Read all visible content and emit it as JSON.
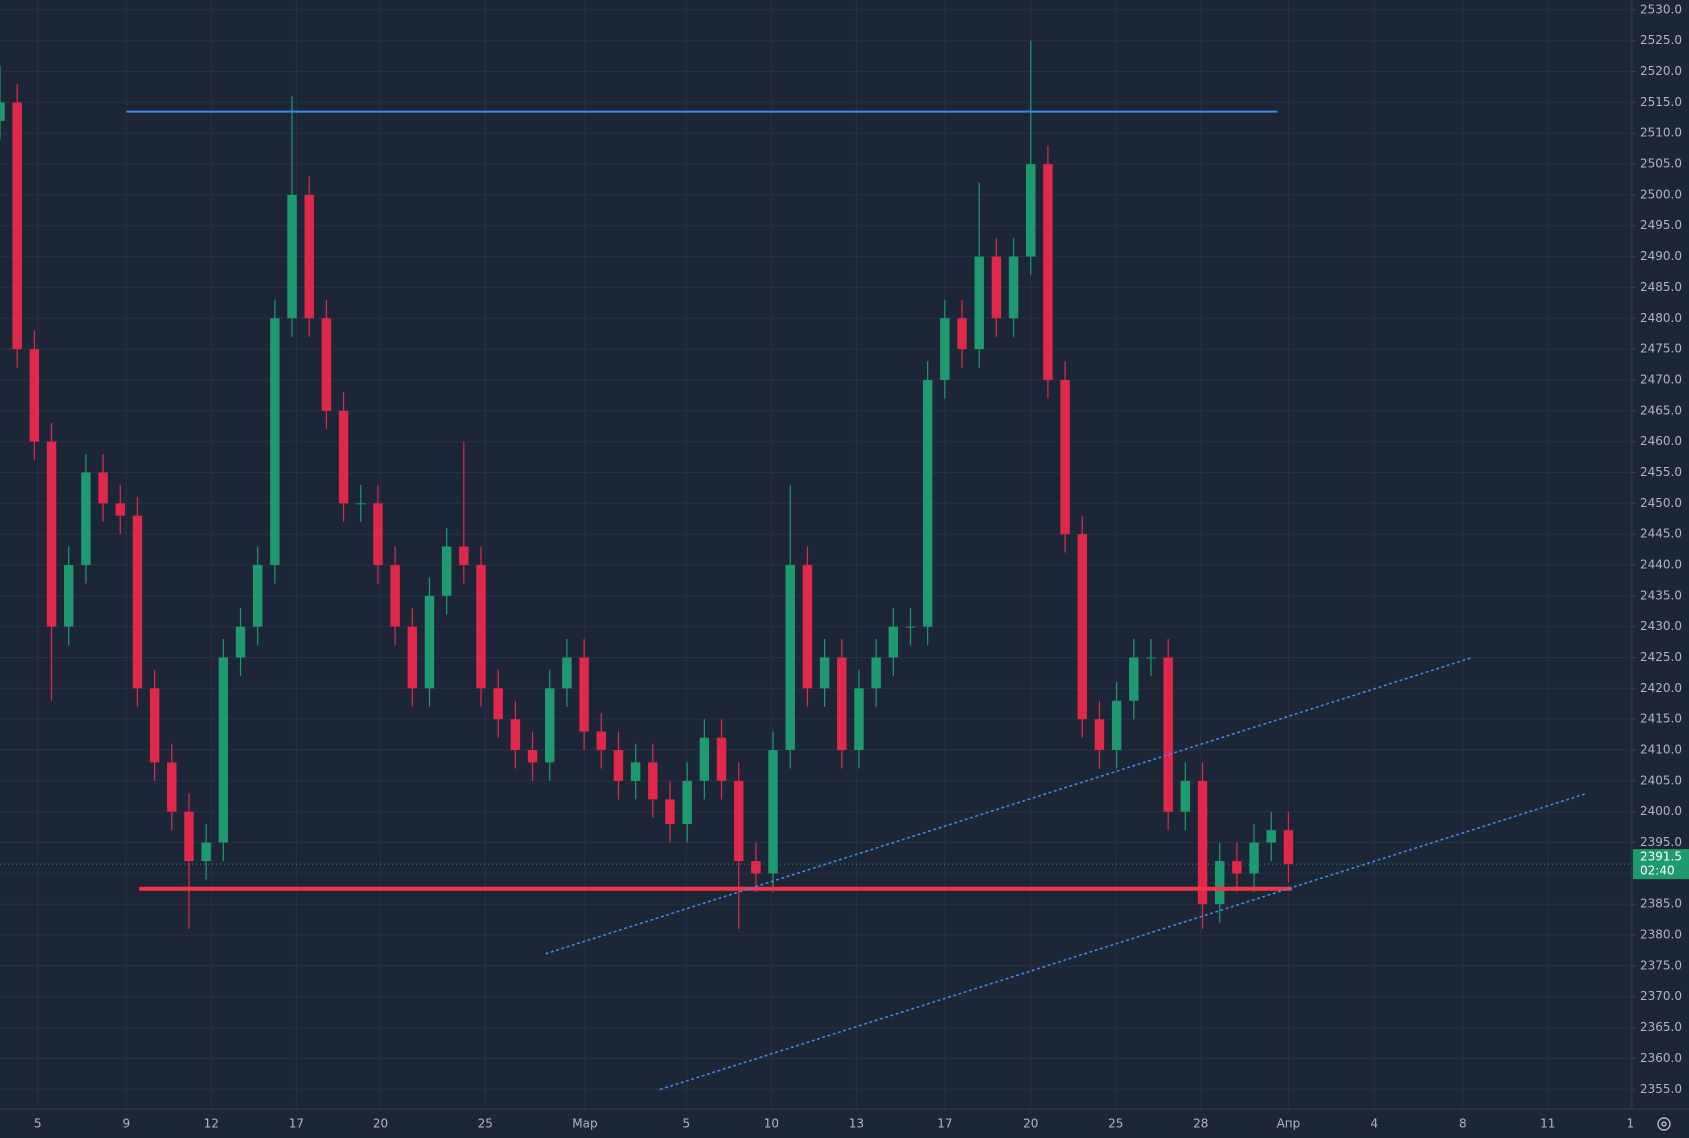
{
  "chart_data": {
    "type": "candlestick",
    "up_color": "#1f9a70",
    "down_color": "#e0294a",
    "grid": true,
    "x": [
      0,
      2,
      4,
      6,
      8,
      10,
      12,
      14,
      16,
      18,
      20,
      22,
      24,
      26,
      28,
      30,
      32,
      34,
      36,
      38,
      40,
      42,
      44,
      46,
      48,
      50,
      52,
      54,
      56,
      58,
      60,
      62,
      64,
      66,
      68,
      70,
      72,
      74,
      76,
      78,
      80,
      82,
      84,
      86,
      88,
      90,
      92,
      94,
      96,
      98,
      100,
      102,
      104,
      106,
      108,
      110,
      112,
      114,
      116,
      118,
      120,
      122,
      124,
      126,
      128,
      130,
      132,
      134,
      136,
      138,
      140,
      142,
      144,
      146,
      148,
      150
    ],
    "open": [
      2512,
      2515,
      2475,
      2460,
      2430,
      2440,
      2455,
      2450,
      2448,
      2420,
      2408,
      2400,
      2392,
      2395,
      2425,
      2430,
      2440,
      2480,
      2500,
      2480,
      2465,
      2450,
      2450,
      2440,
      2430,
      2420,
      2435,
      2443,
      2440,
      2420,
      2415,
      2410,
      2408,
      2420,
      2425,
      2413,
      2410,
      2405,
      2408,
      2402,
      2398,
      2405,
      2412,
      2405,
      2392,
      2390,
      2410,
      2440,
      2420,
      2425,
      2410,
      2420,
      2425,
      2430,
      2430,
      2470,
      2480,
      2475,
      2490,
      2480,
      2490,
      2505,
      2470,
      2445,
      2415,
      2410,
      2418,
      2425,
      2425,
      2400,
      2405,
      2385,
      2392,
      2390,
      2395,
      2397
    ],
    "high": [
      2521,
      2518,
      2478,
      2463,
      2443,
      2458,
      2458,
      2453,
      2451,
      2423,
      2411,
      2403,
      2398,
      2428,
      2433,
      2443,
      2483,
      2516,
      2503,
      2483,
      2468,
      2453,
      2453,
      2443,
      2433,
      2438,
      2446,
      2460,
      2443,
      2423,
      2418,
      2413,
      2423,
      2428,
      2428,
      2416,
      2413,
      2411,
      2411,
      2405,
      2408,
      2415,
      2415,
      2408,
      2395,
      2413,
      2453,
      2443,
      2428,
      2428,
      2423,
      2428,
      2433,
      2433,
      2473,
      2483,
      2483,
      2502,
      2493,
      2493,
      2525,
      2508,
      2473,
      2448,
      2418,
      2421,
      2428,
      2428,
      2428,
      2408,
      2408,
      2395,
      2395,
      2398,
      2400,
      2400
    ],
    "low": [
      2509,
      2472,
      2457,
      2418,
      2427,
      2437,
      2447,
      2445,
      2417,
      2405,
      2397,
      2381,
      2389,
      2392,
      2422,
      2427,
      2437,
      2477,
      2477,
      2462,
      2447,
      2447,
      2437,
      2427,
      2417,
      2417,
      2432,
      2437,
      2417,
      2412,
      2407,
      2405,
      2405,
      2417,
      2410,
      2407,
      2402,
      2402,
      2399,
      2395,
      2395,
      2402,
      2402,
      2381,
      2387,
      2387,
      2407,
      2417,
      2417,
      2407,
      2407,
      2417,
      2422,
      2427,
      2427,
      2467,
      2472,
      2472,
      2477,
      2477,
      2487,
      2467,
      2442,
      2412,
      2407,
      2407,
      2415,
      2422,
      2397,
      2397,
      2381,
      2382,
      2387,
      2387,
      2392,
      2388.5
    ],
    "close": [
      2515,
      2475,
      2460,
      2430,
      2440,
      2455,
      2450,
      2448,
      2420,
      2408,
      2400,
      2392,
      2395,
      2425,
      2430,
      2440,
      2480,
      2500,
      2480,
      2465,
      2450,
      2450,
      2440,
      2430,
      2420,
      2435,
      2443,
      2440,
      2420,
      2415,
      2410,
      2408,
      2420,
      2425,
      2413,
      2410,
      2405,
      2408,
      2402,
      2398,
      2405,
      2412,
      2405,
      2392,
      2390,
      2410,
      2440,
      2420,
      2425,
      2410,
      2420,
      2425,
      2430,
      2430,
      2470,
      2480,
      2475,
      2490,
      2480,
      2490,
      2505,
      2470,
      2445,
      2415,
      2410,
      2418,
      2425,
      2425,
      2400,
      2405,
      2385,
      2392,
      2390,
      2395,
      2397,
      2391.5
    ],
    "xlim": [
      0,
      190
    ],
    "ylim": [
      2351.8,
      2531.6
    ],
    "xticks": [
      {
        "value": 4.4,
        "label": "5"
      },
      {
        "value": 14.7,
        "label": "9"
      },
      {
        "value": 24.6,
        "label": "12"
      },
      {
        "value": 34.5,
        "label": "17"
      },
      {
        "value": 44.3,
        "label": "20"
      },
      {
        "value": 56.5,
        "label": "25"
      },
      {
        "value": 68.1,
        "label": "Мар"
      },
      {
        "value": 79.9,
        "label": "5"
      },
      {
        "value": 89.8,
        "label": "10"
      },
      {
        "value": 99.7,
        "label": "13"
      },
      {
        "value": 110,
        "label": "17"
      },
      {
        "value": 120,
        "label": "20"
      },
      {
        "value": 129.9,
        "label": "25"
      },
      {
        "value": 139.8,
        "label": "28"
      },
      {
        "value": 150,
        "label": "Апр"
      },
      {
        "value": 160,
        "label": "4"
      },
      {
        "value": 170.3,
        "label": "8"
      },
      {
        "value": 180.2,
        "label": "11"
      },
      {
        "value": 189.8,
        "label": "1"
      }
    ],
    "yticks": [
      {
        "value": 2355,
        "label": "2355.0"
      },
      {
        "value": 2360,
        "label": "2360.0"
      },
      {
        "value": 2365,
        "label": "2365.0"
      },
      {
        "value": 2370,
        "label": "2370.0"
      },
      {
        "value": 2375,
        "label": "2375.0"
      },
      {
        "value": 2380,
        "label": "2380.0"
      },
      {
        "value": 2385,
        "label": "2385.0"
      },
      {
        "value": 2390,
        "label": "2390.0"
      },
      {
        "value": 2395,
        "label": "2395.0"
      },
      {
        "value": 2400,
        "label": "2400.0"
      },
      {
        "value": 2405,
        "label": "2405.0"
      },
      {
        "value": 2410,
        "label": "2410.0"
      },
      {
        "value": 2415,
        "label": "2415.0"
      },
      {
        "value": 2420,
        "label": "2420.0"
      },
      {
        "value": 2425,
        "label": "2425.0"
      },
      {
        "value": 2430,
        "label": "2430.0"
      },
      {
        "value": 2435,
        "label": "2435.0"
      },
      {
        "value": 2440,
        "label": "2440.0"
      },
      {
        "value": 2445,
        "label": "2445.0"
      },
      {
        "value": 2450,
        "label": "2450.0"
      },
      {
        "value": 2455,
        "label": "2455.0"
      },
      {
        "value": 2460,
        "label": "2460.0"
      },
      {
        "value": 2465,
        "label": "2465.0"
      },
      {
        "value": 2470,
        "label": "2470.0"
      },
      {
        "value": 2475,
        "label": "2475.0"
      },
      {
        "value": 2480,
        "label": "2480.0"
      },
      {
        "value": 2485,
        "label": "2485.0"
      },
      {
        "value": 2490,
        "label": "2490.0"
      },
      {
        "value": 2495,
        "label": "2495.0"
      },
      {
        "value": 2500,
        "label": "2500.0"
      },
      {
        "value": 2505,
        "label": "2505.0"
      },
      {
        "value": 2510,
        "label": "2510.0"
      },
      {
        "value": 2515,
        "label": "2515.0"
      },
      {
        "value": 2520,
        "label": "2520.0"
      },
      {
        "value": 2525,
        "label": "2525.0"
      },
      {
        "value": 2530,
        "label": "2530.0"
      }
    ],
    "lines": [
      {
        "x": [
          14.8,
          148.6
        ],
        "y": [
          2513.5,
          2513.5
        ],
        "color": "#3d8bf0",
        "width": 2,
        "style": "solid"
      },
      {
        "x": [
          16.4,
          150.2
        ],
        "y": [
          2387.5,
          2387.5
        ],
        "color": "#f23645",
        "width": 4,
        "style": "solid"
      },
      {
        "x": [
          63.6,
          171.4
        ],
        "y": [
          2377,
          2425
        ],
        "color": "#3d8bf0",
        "width": 1.6,
        "style": "dotted"
      },
      {
        "x": [
          76.9,
          184.8
        ],
        "y": [
          2355,
          2403
        ],
        "color": "#3d8bf0",
        "width": 1.6,
        "style": "dotted"
      }
    ],
    "last_price": {
      "value": 2391.5,
      "label": "2391.5"
    },
    "countdown": "02:40"
  }
}
